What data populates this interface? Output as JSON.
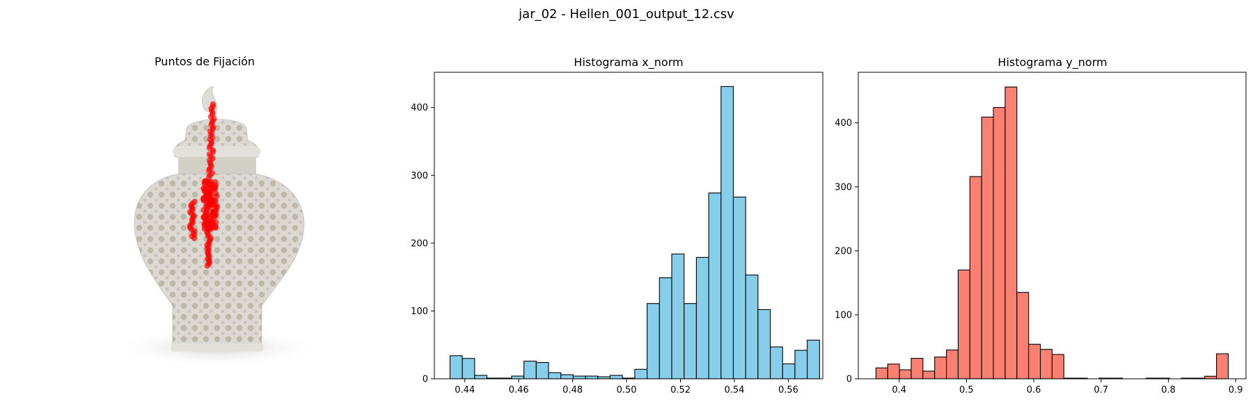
{
  "suptitle": "jar_02 - Hellen_001_output_12.csv",
  "image_panel": {
    "title": "Puntos de Fijación",
    "fixation_color": "#ff0000",
    "jar_color": "#d8d6d0"
  },
  "chart_data": [
    {
      "type": "bar",
      "title": "Histograma x_norm",
      "xlabel": "",
      "ylabel": "",
      "fill": "#87ceeb",
      "edge": "#000000",
      "bin_start": 0.4345,
      "bin_width": 0.00457,
      "values": [
        34,
        30,
        5,
        1,
        1,
        4,
        26,
        24,
        9,
        6,
        4,
        4,
        3,
        5,
        1,
        14,
        111,
        149,
        184,
        111,
        179,
        274,
        431,
        268,
        153,
        102,
        47,
        22,
        42,
        57
      ],
      "xlim": [
        0.4287,
        0.5728
      ],
      "ylim": [
        0,
        452
      ],
      "xticks": [
        0.44,
        0.46,
        0.48,
        0.5,
        0.52,
        0.54,
        0.56
      ],
      "xtick_labels": [
        "0.44",
        "0.46",
        "0.48",
        "0.50",
        "0.52",
        "0.54",
        "0.56"
      ],
      "yticks": [
        0,
        100,
        200,
        300,
        400
      ],
      "ytick_labels": [
        "0",
        "100",
        "200",
        "300",
        "400"
      ]
    },
    {
      "type": "bar",
      "title": "Histograma y_norm",
      "xlabel": "",
      "ylabel": "",
      "fill": "#fa8072",
      "edge": "#000000",
      "bin_start": 0.3655,
      "bin_width": 0.01745,
      "values": [
        17,
        23,
        14,
        32,
        12,
        34,
        45,
        170,
        316,
        409,
        424,
        456,
        135,
        54,
        46,
        38,
        1,
        1,
        0,
        1,
        1,
        0,
        0,
        1,
        1,
        0,
        1,
        1,
        4,
        39
      ],
      "xlim": [
        0.3393,
        0.9154
      ],
      "ylim": [
        0,
        479
      ],
      "xticks": [
        0.4,
        0.5,
        0.6,
        0.7,
        0.8,
        0.9
      ],
      "xtick_labels": [
        "0.4",
        "0.5",
        "0.6",
        "0.7",
        "0.8",
        "0.9"
      ],
      "yticks": [
        0,
        100,
        200,
        300,
        400
      ],
      "ytick_labels": [
        "0",
        "100",
        "200",
        "300",
        "400"
      ]
    }
  ]
}
